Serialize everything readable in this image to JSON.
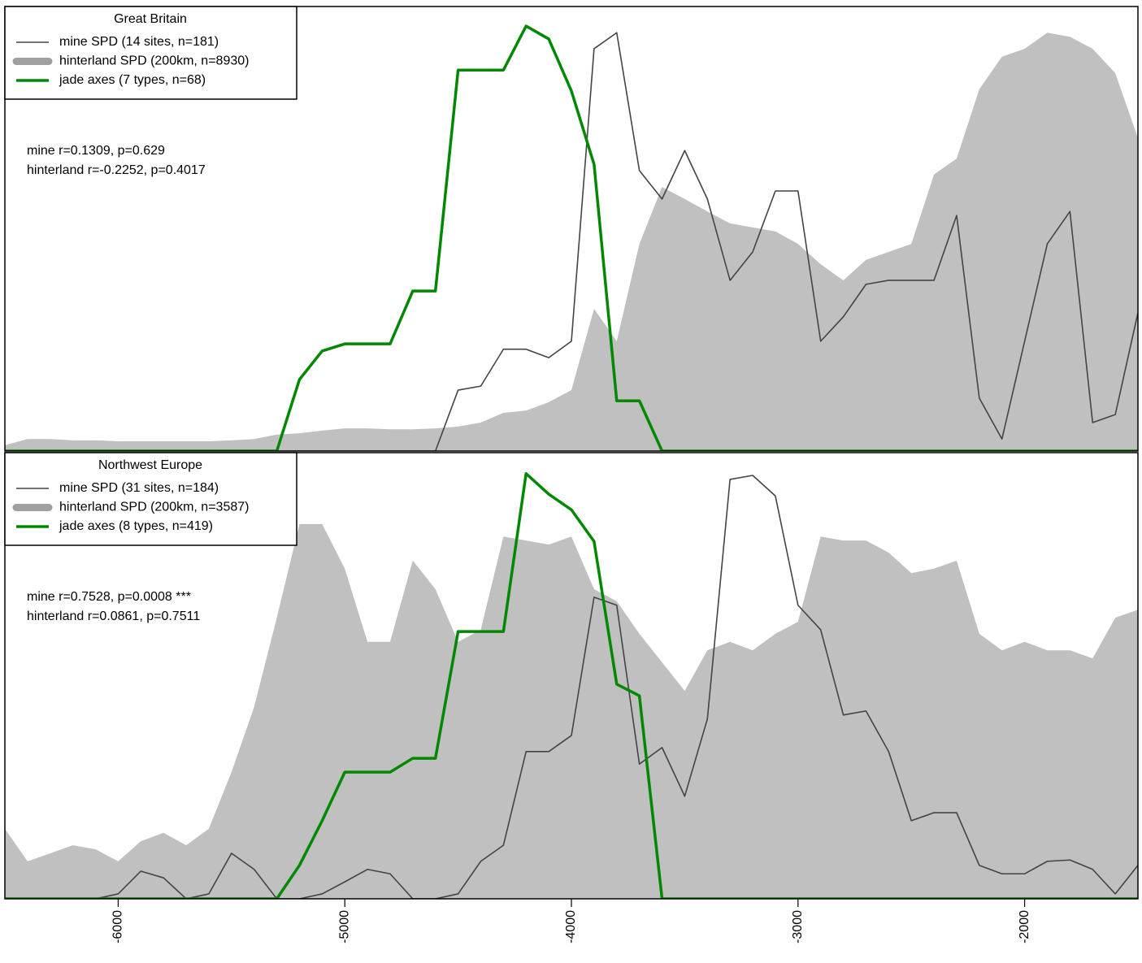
{
  "chart_data": [
    {
      "type": "line",
      "legend_title": "Great Britain",
      "legend": "top-left",
      "annotation": [
        "mine r=0.1309, p=0.629",
        "hinterland r=-0.2252, p=0.4017"
      ],
      "xlim": [
        -6500,
        -1500
      ],
      "ylim": [
        0,
        1
      ],
      "x": [
        -6500,
        -6400,
        -6300,
        -6200,
        -6100,
        -6000,
        -5900,
        -5800,
        -5700,
        -5600,
        -5500,
        -5400,
        -5300,
        -5200,
        -5100,
        -5000,
        -4900,
        -4800,
        -4700,
        -4600,
        -4500,
        -4400,
        -4300,
        -4200,
        -4100,
        -4000,
        -3900,
        -3800,
        -3700,
        -3600,
        -3500,
        -3400,
        -3300,
        -3200,
        -3100,
        -3000,
        -2900,
        -2800,
        -2700,
        -2600,
        -2500,
        -2400,
        -2300,
        -2200,
        -2100,
        -2000,
        -1900,
        -1800,
        -1700,
        -1600,
        -1500
      ],
      "series": [
        {
          "name": "hinterland SPD (200km, n=8930)",
          "color": "#c0c0c0",
          "kind": "area",
          "values": [
            0.013,
            0.027,
            0.027,
            0.024,
            0.024,
            0.022,
            0.022,
            0.022,
            0.022,
            0.022,
            0.024,
            0.027,
            0.037,
            0.04,
            0.046,
            0.051,
            0.051,
            0.049,
            0.049,
            0.051,
            0.055,
            0.064,
            0.086,
            0.091,
            0.11,
            0.137,
            0.32,
            0.247,
            0.466,
            0.594,
            0.567,
            0.539,
            0.512,
            0.503,
            0.494,
            0.466,
            0.42,
            0.384,
            0.43,
            0.448,
            0.466,
            0.622,
            0.658,
            0.814,
            0.887,
            0.905,
            0.941,
            0.932,
            0.905,
            0.85,
            0.704
          ]
        },
        {
          "name": "mine SPD (14 sites, n=181)",
          "color": "#444444",
          "kind": "line",
          "values": [
            0,
            0,
            0,
            0,
            0,
            0,
            0,
            0,
            0,
            0,
            0,
            0,
            0,
            0,
            0,
            0,
            0,
            0,
            0,
            0,
            0.137,
            0.146,
            0.229,
            0.229,
            0.21,
            0.247,
            0.905,
            0.941,
            0.631,
            0.567,
            0.676,
            0.567,
            0.384,
            0.448,
            0.585,
            0.585,
            0.247,
            0.302,
            0.375,
            0.384,
            0.384,
            0.384,
            0.53,
            0.119,
            0.027,
            0.247,
            0.466,
            0.539,
            0.064,
            0.082,
            0.311
          ]
        },
        {
          "name": "jade axes (7 types, n=68)",
          "color": "#008800",
          "kind": "thick-line",
          "values": [
            0,
            0,
            0,
            0,
            0,
            0,
            0,
            0,
            0,
            0,
            0,
            0,
            0,
            0.161,
            0.225,
            0.241,
            0.241,
            0.241,
            0.36,
            0.36,
            0.857,
            0.857,
            0.857,
            0.956,
            0.927,
            0.81,
            0.645,
            0.113,
            0.113,
            0,
            0,
            0,
            0,
            0,
            0,
            0,
            0,
            0,
            0,
            0,
            0,
            0,
            0,
            0,
            0,
            0,
            0,
            0,
            0,
            0,
            0
          ]
        }
      ]
    },
    {
      "type": "line",
      "legend_title": "Northwest Europe",
      "legend": "top-left",
      "annotation": [
        "mine r=0.7528, p=0.0008 ***",
        "hinterland r=0.0861, p=0.7511"
      ],
      "xlim": [
        -6500,
        -1500
      ],
      "ylim": [
        0,
        1
      ],
      "xticks": [
        -6000,
        -5000,
        -4000,
        -3000,
        -2000
      ],
      "x": [
        -6500,
        -6400,
        -6300,
        -6200,
        -6100,
        -6000,
        -5900,
        -5800,
        -5700,
        -5600,
        -5500,
        -5400,
        -5300,
        -5200,
        -5100,
        -5000,
        -4900,
        -4800,
        -4700,
        -4600,
        -4500,
        -4400,
        -4300,
        -4200,
        -4100,
        -4000,
        -3900,
        -3800,
        -3700,
        -3600,
        -3500,
        -3400,
        -3300,
        -3200,
        -3100,
        -3000,
        -2900,
        -2800,
        -2700,
        -2600,
        -2500,
        -2400,
        -2300,
        -2200,
        -2100,
        -2000,
        -1900,
        -1800,
        -1700,
        -1600,
        -1500
      ],
      "series": [
        {
          "name": "hinterland SPD (200km, n=3587)",
          "color": "#c0c0c0",
          "kind": "area",
          "values": [
            0.157,
            0.084,
            0.102,
            0.12,
            0.111,
            0.084,
            0.129,
            0.148,
            0.12,
            0.157,
            0.284,
            0.43,
            0.63,
            0.84,
            0.84,
            0.74,
            0.576,
            0.576,
            0.758,
            0.694,
            0.576,
            0.603,
            0.812,
            0.803,
            0.794,
            0.812,
            0.694,
            0.667,
            0.594,
            0.53,
            0.466,
            0.557,
            0.576,
            0.557,
            0.594,
            0.621,
            0.812,
            0.803,
            0.803,
            0.776,
            0.73,
            0.74,
            0.758,
            0.594,
            0.557,
            0.576,
            0.557,
            0.557,
            0.539,
            0.63,
            0.648
          ]
        },
        {
          "name": "mine SPD (31 sites, n=184)",
          "color": "#444444",
          "kind": "line",
          "values": [
            0,
            0,
            0,
            0,
            0,
            0.011,
            0.062,
            0.047,
            0,
            0.011,
            0.102,
            0.066,
            0,
            0,
            0.011,
            0.038,
            0.066,
            0.056,
            0,
            0,
            0.011,
            0.084,
            0.12,
            0.33,
            0.33,
            0.366,
            0.676,
            0.658,
            0.302,
            0.339,
            0.23,
            0.403,
            0.94,
            0.949,
            0.903,
            0.658,
            0.603,
            0.412,
            0.421,
            0.33,
            0.175,
            0.193,
            0.193,
            0.075,
            0.056,
            0.056,
            0.084,
            0.087,
            0.066,
            0.011,
            0.075
          ]
        },
        {
          "name": "jade axes (8 types, n=419)",
          "color": "#008800",
          "kind": "thick-line",
          "values": [
            0,
            0,
            0,
            0,
            0,
            0,
            0,
            0,
            0,
            0,
            0,
            0,
            0,
            0.075,
            0.175,
            0.284,
            0.284,
            0.284,
            0.315,
            0.315,
            0.599,
            0.599,
            0.599,
            0.953,
            0.907,
            0.872,
            0.801,
            0.481,
            0.455,
            0,
            0,
            0,
            0,
            0,
            0,
            0,
            0,
            0,
            0,
            0,
            0,
            0,
            0,
            0,
            0,
            0,
            0,
            0,
            0,
            0,
            0
          ]
        }
      ]
    }
  ]
}
